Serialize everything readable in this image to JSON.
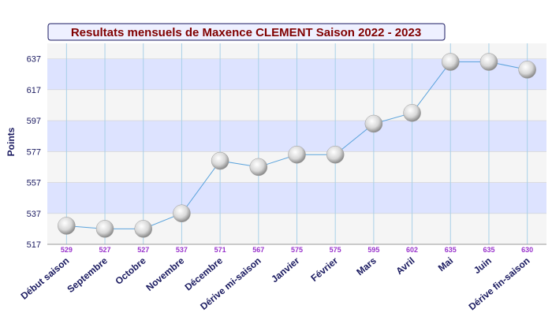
{
  "chart_data": {
    "type": "line",
    "title": "Resultats mensuels de Maxence CLEMENT Saison 2022 - 2023",
    "y_label": "Points",
    "categories": [
      "Début saison",
      "Septembre",
      "Octobre",
      "Novembre",
      "Décembre",
      "Dérive mi-saison",
      "Janvier",
      "Février",
      "Mars",
      "Avril",
      "Mai",
      "Juin",
      "Dérive fin-saison"
    ],
    "values": [
      529,
      527,
      527,
      537,
      571,
      567,
      575,
      575,
      595,
      602,
      635,
      635,
      630
    ],
    "color": "#5ba3dc",
    "ylim": [
      517,
      647
    ],
    "yticks": [
      517,
      537,
      557,
      577,
      597,
      617,
      637
    ],
    "grid": true
  }
}
